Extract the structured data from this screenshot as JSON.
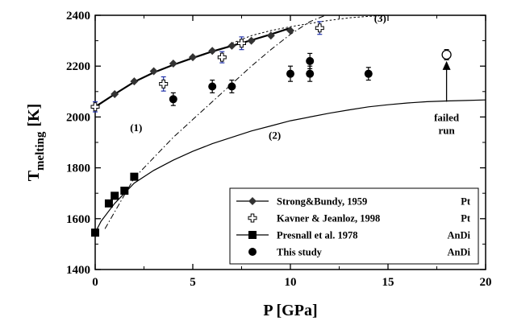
{
  "chart_data": {
    "type": "scatter",
    "title": "",
    "xlabel": "P [GPa]",
    "ylabel": {
      "main": "T",
      "sub": "melting",
      "unit": "[K]"
    },
    "xlim": [
      0,
      20
    ],
    "ylim": [
      1400,
      2400
    ],
    "x_ticks": [
      0,
      5,
      10,
      15,
      20
    ],
    "y_ticks": [
      1400,
      1600,
      1800,
      2000,
      2200,
      2400
    ],
    "grid": false,
    "legend_placement": "bottom-right",
    "legend": [
      {
        "label": "Strong&Bundy, 1959",
        "tag": "Pt",
        "marker": "diamond",
        "line": "solid"
      },
      {
        "label": "Kavner & Jeanloz, 1998",
        "tag": "Pt",
        "marker": "open-cross",
        "line": "none"
      },
      {
        "label": "Presnall et al. 1978",
        "tag": "AnDi",
        "marker": "square",
        "line": "solid"
      },
      {
        "label": "This study",
        "tag": "AnDi",
        "marker": "circle",
        "line": "none"
      }
    ],
    "series": [
      {
        "name": "Strong&Bundy, 1959",
        "marker": "diamond",
        "points": [
          [
            0,
            2040
          ],
          [
            1,
            2090
          ],
          [
            2,
            2140
          ],
          [
            3,
            2180
          ],
          [
            4,
            2210
          ],
          [
            5,
            2235
          ],
          [
            6,
            2260
          ],
          [
            7,
            2280
          ],
          [
            8,
            2300
          ],
          [
            9,
            2320
          ],
          [
            10,
            2340
          ]
        ]
      },
      {
        "name": "Kavner & Jeanloz, 1998",
        "marker": "open-cross",
        "points": [
          [
            0,
            2040,
            20
          ],
          [
            3.5,
            2130,
            28
          ],
          [
            6.5,
            2235,
            22
          ],
          [
            7.5,
            2290,
            25
          ],
          [
            11.5,
            2350,
            25
          ]
        ]
      },
      {
        "name": "Presnall et al. 1978",
        "marker": "square",
        "points": [
          [
            0,
            1545
          ],
          [
            0.7,
            1660
          ],
          [
            1,
            1690
          ],
          [
            1.5,
            1710
          ],
          [
            2,
            1765
          ]
        ]
      },
      {
        "name": "This study",
        "marker": "circle",
        "points": [
          [
            4,
            2070,
            25
          ],
          [
            6,
            2120,
            25
          ],
          [
            7,
            2120,
            25
          ],
          [
            10,
            2170,
            30
          ],
          [
            11,
            2170,
            30
          ],
          [
            11,
            2220,
            30
          ],
          [
            14,
            2170,
            25
          ]
        ]
      }
    ],
    "failed_run": {
      "x": 18,
      "y": 2245,
      "err": 20,
      "label_line1": "failed",
      "label_line2": "run",
      "arrow_from": [
        18,
        2060
      ],
      "arrow_to": [
        18,
        2220
      ]
    },
    "curves": [
      {
        "id": "strong-bundy-fit",
        "style": "solid-thick",
        "points": [
          [
            0,
            2040
          ],
          [
            1,
            2090
          ],
          [
            2,
            2138
          ],
          [
            3,
            2175
          ],
          [
            4,
            2205
          ],
          [
            5,
            2232
          ],
          [
            6,
            2258
          ],
          [
            7,
            2280
          ],
          [
            8,
            2302
          ],
          [
            9,
            2325
          ],
          [
            10,
            2350
          ]
        ]
      },
      {
        "id": "curve-1",
        "label": "(1)",
        "label_at": [
          2.1,
          1945
        ],
        "style": "dashdot",
        "points": [
          [
            0.5,
            1560
          ],
          [
            2,
            1760
          ],
          [
            4,
            1920
          ],
          [
            6,
            2060
          ],
          [
            8,
            2200
          ],
          [
            9,
            2265
          ],
          [
            10,
            2325
          ],
          [
            11,
            2375
          ],
          [
            11.8,
            2400
          ]
        ]
      },
      {
        "id": "curve-2",
        "label": "(2)",
        "label_at": [
          9.2,
          1915
        ],
        "style": "solid-thin",
        "points": [
          [
            0,
            1545
          ],
          [
            0.3,
            1590
          ],
          [
            0.7,
            1630
          ],
          [
            1,
            1660
          ],
          [
            1.5,
            1700
          ],
          [
            2,
            1740
          ],
          [
            3,
            1790
          ],
          [
            4,
            1830
          ],
          [
            5,
            1865
          ],
          [
            6,
            1895
          ],
          [
            7,
            1920
          ],
          [
            8,
            1945
          ],
          [
            9,
            1965
          ],
          [
            10,
            1985
          ],
          [
            11,
            2000
          ],
          [
            12,
            2015
          ],
          [
            13,
            2028
          ],
          [
            14,
            2040
          ],
          [
            15,
            2048
          ],
          [
            16,
            2055
          ],
          [
            17,
            2060
          ],
          [
            18,
            2063
          ],
          [
            19,
            2065
          ],
          [
            20,
            2067
          ]
        ]
      },
      {
        "id": "curve-3",
        "label": "(3)",
        "label_at": [
          14.6,
          2375
        ],
        "style": "dotted",
        "points": [
          [
            7,
            2290
          ],
          [
            8,
            2320
          ],
          [
            9,
            2340
          ],
          [
            10,
            2355
          ],
          [
            11,
            2368
          ],
          [
            12,
            2380
          ],
          [
            13,
            2390
          ],
          [
            14,
            2396
          ],
          [
            15,
            2400
          ]
        ]
      }
    ]
  }
}
